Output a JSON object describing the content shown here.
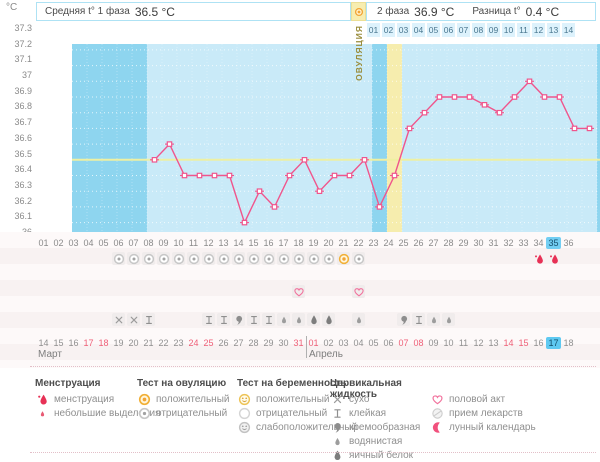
{
  "header": {
    "unit": "°C",
    "phase1_label": "Средняя t° 1 фаза",
    "phase1_value": "36.5 °C",
    "phase2_label": "2 фаза",
    "phase2_value": "36.9 °C",
    "diff_label": "Разница t°",
    "diff_value": "0.4 °C",
    "ovulation_band_label": "ОВУЛЯЦИЯ"
  },
  "chart_data": {
    "type": "line",
    "title": "Basal body temperature cycle chart",
    "ylabel": "°C",
    "ylim": [
      36.0,
      37.3
    ],
    "ytick_step": 0.1,
    "ytick_labels": [
      "37.3",
      "37.2",
      "37.1",
      "37",
      "36.9",
      "36.8",
      "36.7",
      "36.6",
      "36.5",
      "36.4",
      "36.3",
      "36.2",
      "36.1",
      "36"
    ],
    "cycle_day_labels": [
      "01",
      "02",
      "03",
      "04",
      "05",
      "06",
      "07",
      "08",
      "09",
      "10",
      "11",
      "12",
      "13",
      "14",
      "15",
      "16",
      "17",
      "18",
      "19",
      "20",
      "21",
      "22",
      "23",
      "24",
      "25",
      "26",
      "27",
      "28",
      "29",
      "30",
      "31",
      "32",
      "33",
      "34",
      "35",
      "36"
    ],
    "april_header": [
      "01",
      "02",
      "03",
      "04",
      "05",
      "06",
      "07",
      "08",
      "09",
      "10",
      "11",
      "12",
      "13",
      "14"
    ],
    "coverline_temp": 36.6,
    "ovulation_day": 22,
    "today_cycle_day": 35,
    "shaded_days": [
      6,
      7,
      8,
      9,
      10,
      11,
      12,
      13,
      14,
      15,
      16,
      17,
      18,
      19,
      20,
      23,
      24,
      25,
      26,
      27,
      28,
      29,
      30,
      31,
      32,
      33,
      34,
      35
    ],
    "series": [
      {
        "name": "температура",
        "points": [
          {
            "day": 6,
            "temp": 36.6
          },
          {
            "day": 7,
            "temp": 36.7
          },
          {
            "day": 8,
            "temp": 36.5
          },
          {
            "day": 9,
            "temp": 36.5
          },
          {
            "day": 10,
            "temp": 36.5
          },
          {
            "day": 11,
            "temp": 36.5
          },
          {
            "day": 12,
            "temp": 36.2
          },
          {
            "day": 13,
            "temp": 36.4
          },
          {
            "day": 14,
            "temp": 36.3
          },
          {
            "day": 15,
            "temp": 36.5
          },
          {
            "day": 16,
            "temp": 36.6
          },
          {
            "day": 17,
            "temp": 36.4
          },
          {
            "day": 18,
            "temp": 36.5
          },
          {
            "day": 19,
            "temp": 36.5
          },
          {
            "day": 20,
            "temp": 36.6
          },
          {
            "day": 21,
            "temp": 36.3
          },
          {
            "day": 22,
            "temp": 36.5
          },
          {
            "day": 23,
            "temp": 36.8
          },
          {
            "day": 24,
            "temp": 36.9
          },
          {
            "day": 25,
            "temp": 37.0
          },
          {
            "day": 26,
            "temp": 37.0
          },
          {
            "day": 27,
            "temp": 37.0
          },
          {
            "day": 28,
            "temp": 36.95
          },
          {
            "day": 29,
            "temp": 36.9
          },
          {
            "day": 30,
            "temp": 37.0
          },
          {
            "day": 31,
            "temp": 37.1
          },
          {
            "day": 32,
            "temp": 37.0
          },
          {
            "day": 33,
            "temp": 37.0
          },
          {
            "day": 34,
            "temp": 36.8
          },
          {
            "day": 35,
            "temp": 36.8
          }
        ]
      }
    ],
    "colors": {
      "line": "#f0558c",
      "marker_fill": "#ffffff",
      "coverline": "#eef0a2",
      "chart_base": "#8ed5ef",
      "chart_shade": "#c9eaf8",
      "ovulation_column": "#f6edae",
      "grid": "#ffffff"
    }
  },
  "events": {
    "ovulation_tests": {
      "negative_days": [
        6,
        7,
        8,
        9,
        10,
        11,
        12,
        13,
        14,
        15,
        16,
        17,
        18,
        19,
        20,
        22
      ],
      "positive_days": [
        21
      ]
    },
    "menstruation_days": [
      34,
      35
    ],
    "intercourse_days": [
      18,
      22
    ],
    "cervical_fluid": [
      {
        "day": 6,
        "type": "dry"
      },
      {
        "day": 7,
        "type": "dry"
      },
      {
        "day": 8,
        "type": "sticky"
      },
      {
        "day": 12,
        "type": "sticky"
      },
      {
        "day": 13,
        "type": "sticky"
      },
      {
        "day": 14,
        "type": "creamy"
      },
      {
        "day": 15,
        "type": "sticky"
      },
      {
        "day": 16,
        "type": "sticky"
      },
      {
        "day": 17,
        "type": "watery"
      },
      {
        "day": 18,
        "type": "watery"
      },
      {
        "day": 19,
        "type": "eggwhite"
      },
      {
        "day": 20,
        "type": "eggwhite"
      },
      {
        "day": 22,
        "type": "watery"
      },
      {
        "day": 25,
        "type": "creamy"
      },
      {
        "day": 26,
        "type": "sticky"
      },
      {
        "day": 27,
        "type": "watery"
      },
      {
        "day": 28,
        "type": "watery"
      }
    ]
  },
  "calendar": {
    "march": {
      "label": "Март",
      "start_cycle_day": 1,
      "dates": [
        "14",
        "15",
        "16",
        "17",
        "18",
        "19",
        "20",
        "21",
        "22",
        "23",
        "24",
        "25",
        "26",
        "27",
        "28",
        "29",
        "30",
        "31"
      ],
      "weekend": [
        "17",
        "18",
        "24",
        "25",
        "31"
      ]
    },
    "april": {
      "label": "Апрель",
      "start_cycle_day": 19,
      "dates": [
        "01",
        "02",
        "03",
        "04",
        "05",
        "06",
        "07",
        "08",
        "09",
        "10",
        "11",
        "12",
        "13",
        "14",
        "15",
        "16",
        "17",
        "18"
      ],
      "weekend": [
        "01",
        "07",
        "08",
        "14",
        "15"
      ],
      "today": "17"
    }
  },
  "legend": {
    "columns": [
      {
        "title": "Менструация",
        "items": [
          {
            "icon": "menstruation",
            "label": "менструация"
          },
          {
            "icon": "spotting",
            "label": "небольшие выделения"
          }
        ]
      },
      {
        "title": "Тест на овуляцию",
        "items": [
          {
            "icon": "ovulation-test-positive",
            "label": "положительный"
          },
          {
            "icon": "ovulation-test-negative",
            "label": "отрицательный"
          }
        ]
      },
      {
        "title": "Тест на беременность",
        "items": [
          {
            "icon": "pregnancy-test-positive",
            "label": "положительный"
          },
          {
            "icon": "pregnancy-test-negative",
            "label": "отрицательный"
          },
          {
            "icon": "pregnancy-test-weak",
            "label": "слабоположительный"
          }
        ]
      },
      {
        "title": "Цервикальная жидкость",
        "items": [
          {
            "icon": "cervical-dry",
            "label": "сухо"
          },
          {
            "icon": "cervical-sticky",
            "label": "клейкая"
          },
          {
            "icon": "cervical-creamy",
            "label": "кремообразная"
          },
          {
            "icon": "cervical-watery",
            "label": "водянистая"
          },
          {
            "icon": "cervical-eggwhite",
            "label": "яичный белок"
          }
        ]
      },
      {
        "title": "",
        "items": [
          {
            "icon": "intercourse",
            "label": "половой акт"
          },
          {
            "icon": "medication",
            "label": "прием лекарств"
          },
          {
            "icon": "lunar",
            "label": "лунный календарь"
          }
        ]
      }
    ]
  }
}
